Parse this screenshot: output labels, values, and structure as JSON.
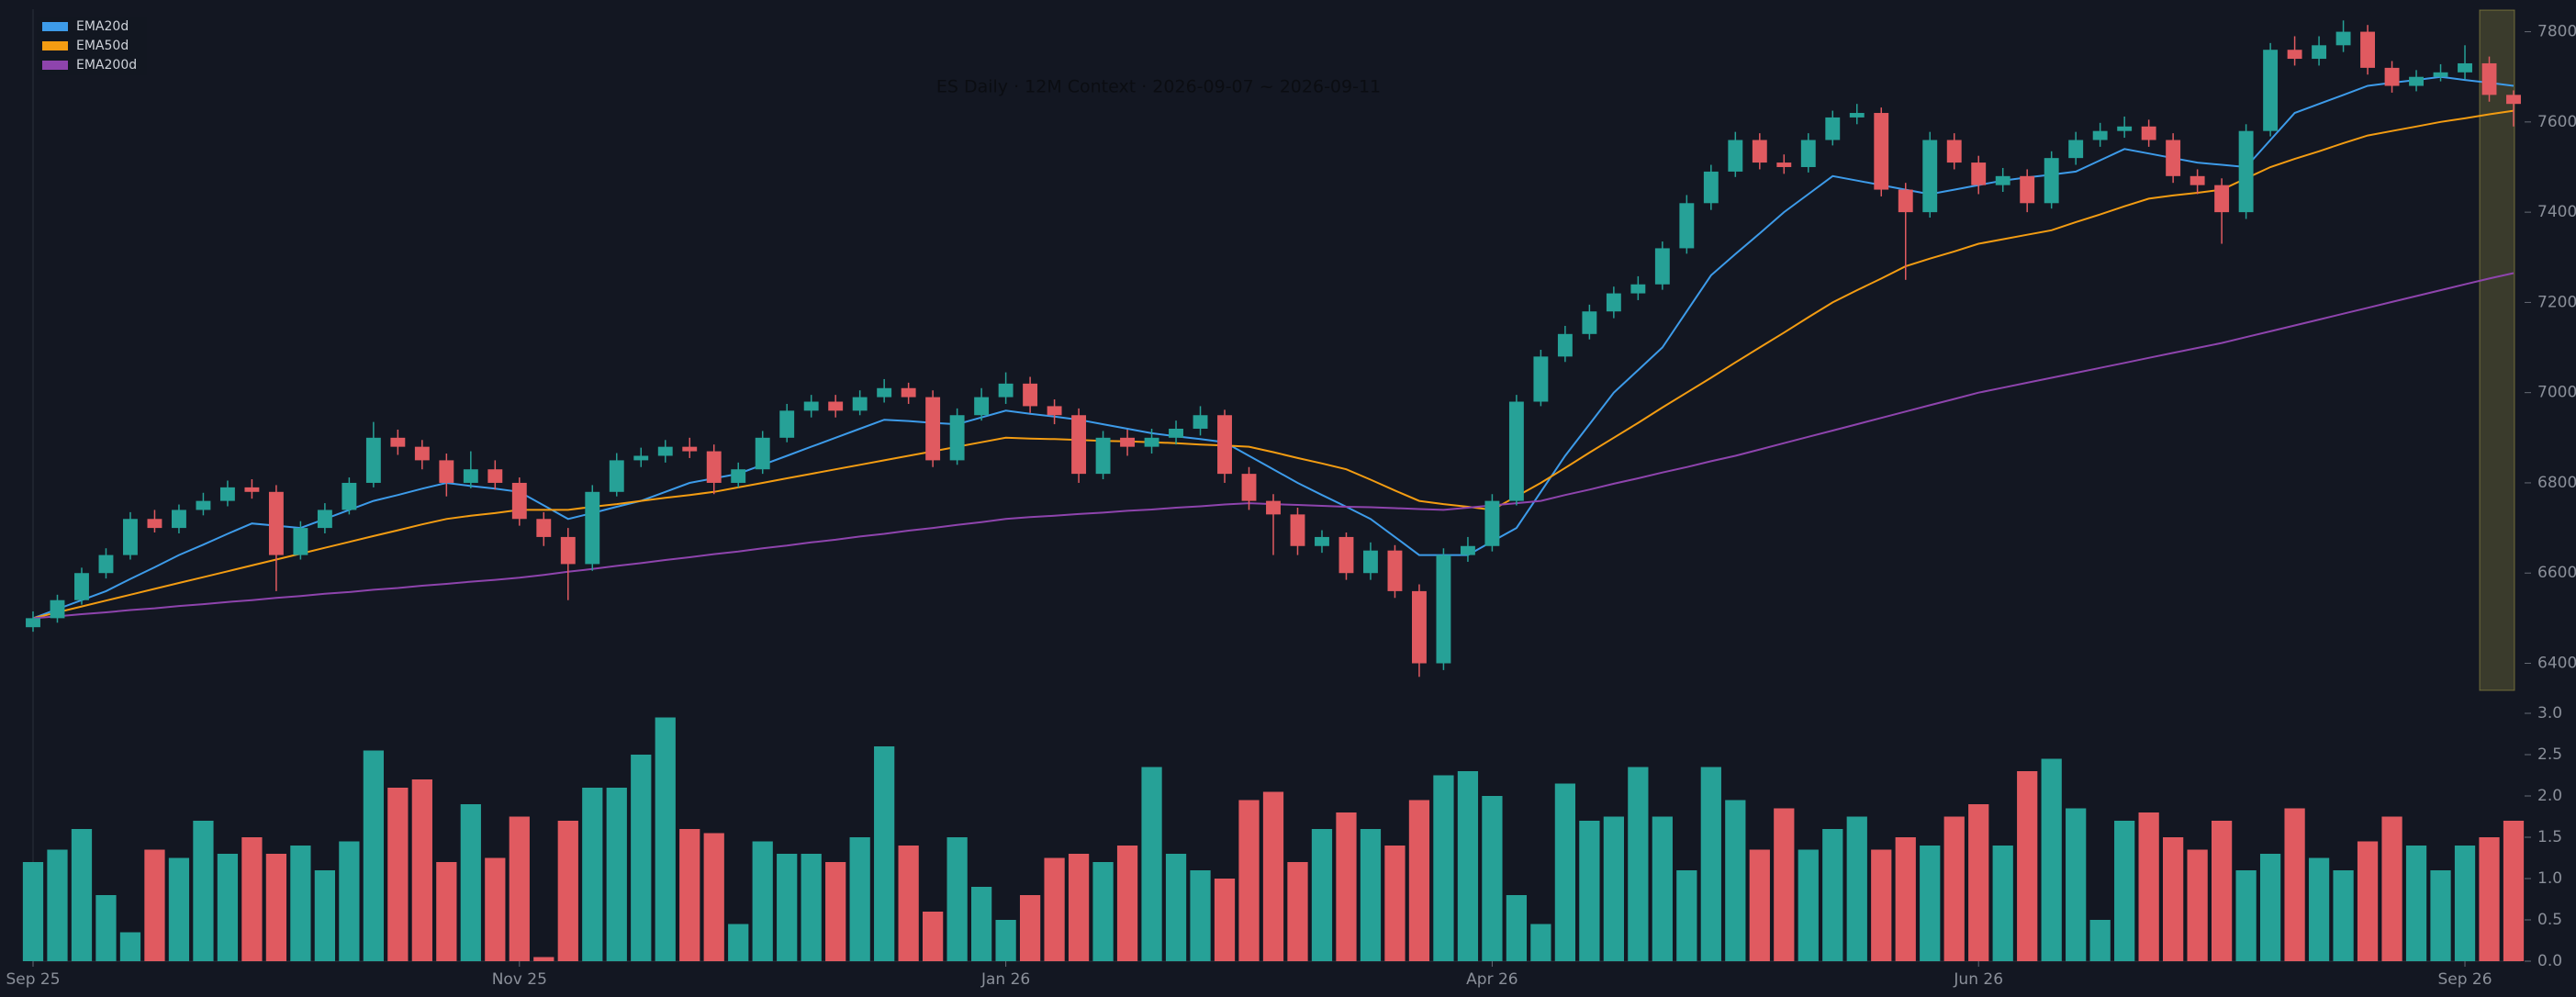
{
  "chart_data": {
    "type": "candlestick",
    "title": "ES Daily · 12M Context · 2026-09-07 ~ 2026-09-11",
    "xlim": [
      0,
      102
    ],
    "xticks": [
      {
        "value": 0,
        "label": "Sep 25"
      },
      {
        "value": 20,
        "label": "Nov 25"
      },
      {
        "value": 40,
        "label": "Jan 26"
      },
      {
        "value": 60,
        "label": "Apr 26"
      },
      {
        "value": 80,
        "label": "Jun 26"
      },
      {
        "value": 100,
        "label": "Sep 26"
      }
    ],
    "ylim": [
      6340,
      7850
    ],
    "yticks": [
      6400,
      6600,
      6800,
      7000,
      7200,
      7400,
      7600,
      7800
    ],
    "y2lim": [
      0,
      3
    ],
    "y2ticks": [
      {
        "value": 0,
        "label": "0.0"
      },
      0.5,
      {
        "value": 1,
        "label": "1.0"
      },
      1.5,
      {
        "value": 2,
        "label": "2.0"
      },
      2.5,
      {
        "value": 3,
        "label": "3.0"
      }
    ],
    "up_color": "#26a197",
    "down_color": "#e05a60",
    "open": [
      6480,
      6500,
      6540,
      6600,
      6640,
      6720,
      6700,
      6740,
      6760,
      6790,
      6780,
      6640,
      6700,
      6740,
      6800,
      6900,
      6880,
      6850,
      6800,
      6830,
      6800,
      6720,
      6680,
      6620,
      6780,
      6850,
      6860,
      6880,
      6870,
      6800,
      6830,
      6900,
      6960,
      6980,
      6960,
      6990,
      7010,
      6990,
      6850,
      6950,
      6990,
      7020,
      6970,
      6950,
      6820,
      6900,
      6880,
      6900,
      6920,
      6950,
      6820,
      6760,
      6730,
      6660,
      6680,
      6600,
      6650,
      6560,
      6400,
      6640,
      6660,
      6760,
      6980,
      7080,
      7130,
      7180,
      7220,
      7240,
      7320,
      7420,
      7490,
      7560,
      7510,
      7500,
      7560,
      7610,
      7620,
      7450,
      7400,
      7560,
      7510,
      7460,
      7480,
      7420,
      7520,
      7560,
      7580,
      7590,
      7560,
      7480,
      7460,
      7400,
      7580,
      7760,
      7740,
      7770,
      7800,
      7720,
      7680,
      7700,
      7710,
      7730,
      7660
    ],
    "high": [
      6515,
      6552,
      6612,
      6655,
      6735,
      6740,
      6752,
      6778,
      6805,
      6808,
      6795,
      6715,
      6755,
      6812,
      6935,
      6918,
      6895,
      6865,
      6870,
      6850,
      6812,
      6735,
      6700,
      6795,
      6866,
      6878,
      6895,
      6900,
      6885,
      6845,
      6915,
      6975,
      6995,
      6995,
      7005,
      7030,
      7022,
      7005,
      6965,
      7010,
      7045,
      7035,
      6985,
      6965,
      6915,
      6918,
      6920,
      6938,
      6970,
      6962,
      6835,
      6775,
      6745,
      6695,
      6690,
      6668,
      6662,
      6575,
      6655,
      6680,
      6775,
      6995,
      7095,
      7148,
      7195,
      7235,
      7258,
      7335,
      7438,
      7505,
      7578,
      7575,
      7528,
      7575,
      7625,
      7640,
      7632,
      7465,
      7578,
      7575,
      7525,
      7498,
      7495,
      7535,
      7578,
      7598,
      7612,
      7605,
      7575,
      7495,
      7475,
      7595,
      7775,
      7790,
      7790,
      7825,
      7815,
      7735,
      7715,
      7728,
      7770,
      7745,
      7670
    ],
    "low": [
      6470,
      6490,
      6530,
      6588,
      6630,
      6690,
      6688,
      6728,
      6748,
      6765,
      6560,
      6630,
      6688,
      6730,
      6790,
      6862,
      6830,
      6770,
      6788,
      6785,
      6705,
      6660,
      6540,
      6605,
      6770,
      6835,
      6845,
      6855,
      6775,
      6790,
      6820,
      6890,
      6945,
      6945,
      6950,
      6978,
      6975,
      6835,
      6840,
      6938,
      6975,
      6955,
      6930,
      6800,
      6808,
      6860,
      6865,
      6885,
      6905,
      6800,
      6740,
      6640,
      6640,
      6645,
      6585,
      6585,
      6545,
      6370,
      6385,
      6625,
      6648,
      6750,
      6970,
      7068,
      7118,
      7165,
      7205,
      7228,
      7308,
      7405,
      7478,
      7495,
      7485,
      7488,
      7548,
      7595,
      7435,
      7250,
      7388,
      7495,
      7440,
      7445,
      7400,
      7408,
      7505,
      7545,
      7565,
      7545,
      7465,
      7440,
      7330,
      7385,
      7568,
      7725,
      7725,
      7755,
      7705,
      7665,
      7668,
      7690,
      7695,
      7645,
      7590
    ],
    "close": [
      6500,
      6540,
      6600,
      6640,
      6720,
      6700,
      6740,
      6760,
      6790,
      6780,
      6640,
      6700,
      6740,
      6800,
      6900,
      6880,
      6850,
      6800,
      6830,
      6800,
      6720,
      6680,
      6620,
      6780,
      6850,
      6860,
      6880,
      6870,
      6800,
      6830,
      6900,
      6960,
      6980,
      6960,
      6990,
      7010,
      6990,
      6850,
      6950,
      6990,
      7020,
      6970,
      6950,
      6820,
      6900,
      6880,
      6900,
      6920,
      6950,
      6820,
      6760,
      6730,
      6660,
      6680,
      6600,
      6650,
      6560,
      6400,
      6640,
      6660,
      6760,
      6980,
      7080,
      7130,
      7180,
      7220,
      7240,
      7320,
      7420,
      7490,
      7560,
      7510,
      7500,
      7560,
      7610,
      7620,
      7450,
      7400,
      7560,
      7510,
      7460,
      7480,
      7420,
      7520,
      7560,
      7580,
      7590,
      7560,
      7480,
      7460,
      7400,
      7580,
      7760,
      7740,
      7770,
      7800,
      7720,
      7680,
      7700,
      7710,
      7730,
      7660,
      7640
    ],
    "volume": [
      1.2,
      1.35,
      1.6,
      0.8,
      0.35,
      1.35,
      1.25,
      1.7,
      1.3,
      1.5,
      1.3,
      1.4,
      1.1,
      1.45,
      2.55,
      2.1,
      2.2,
      1.2,
      1.9,
      1.25,
      1.75,
      0.05,
      1.7,
      2.1,
      2.1,
      2.5,
      2.95,
      1.6,
      1.55,
      0.45,
      1.45,
      1.3,
      1.3,
      1.2,
      1.5,
      2.6,
      1.4,
      0.6,
      1.5,
      0.9,
      0.5,
      0.8,
      1.25,
      1.3,
      1.2,
      1.4,
      2.35,
      1.3,
      1.1,
      1.0,
      1.95,
      2.05,
      1.2,
      1.6,
      1.8,
      1.6,
      1.4,
      1.95,
      2.25,
      2.3,
      2.0,
      0.8,
      0.45,
      2.15,
      1.7,
      1.75,
      2.35,
      1.75,
      1.1,
      2.35,
      1.95,
      1.35,
      1.85,
      1.35,
      1.6,
      1.75,
      1.35,
      1.5,
      1.4,
      1.75,
      1.9,
      1.4,
      2.3,
      2.45,
      1.85,
      0.5,
      1.7,
      1.8,
      1.5,
      1.35,
      1.7,
      1.1,
      1.3,
      1.85,
      1.25,
      1.1,
      1.45,
      1.75,
      1.4,
      1.1,
      1.4,
      1.5,
      1.7
    ],
    "series": [
      {
        "name": "EMA20d",
        "color": "#3d9be9",
        "values": [
          6500,
          6520,
          6540,
          6560,
          6587,
          6613,
          6640,
          6663,
          6687,
          6710,
          6705,
          6700,
          6720,
          6740,
          6760,
          6773,
          6787,
          6800,
          6793,
          6787,
          6780,
          6750,
          6720,
          6733,
          6747,
          6760,
          6780,
          6800,
          6810,
          6820,
          6840,
          6860,
          6880,
          6900,
          6920,
          6940,
          6937,
          6933,
          6930,
          6945,
          6960,
          6953,
          6947,
          6940,
          6930,
          6920,
          6910,
          6903,
          6897,
          6890,
          6860,
          6830,
          6800,
          6773,
          6747,
          6720,
          6680,
          6640,
          6640,
          6640,
          6670,
          6700,
          6780,
          6860,
          6930,
          7000,
          7050,
          7100,
          7180,
          7260,
          7307,
          7353,
          7400,
          7440,
          7480,
          7470,
          7460,
          7450,
          7440,
          7450,
          7460,
          7470,
          7477,
          7483,
          7490,
          7515,
          7540,
          7530,
          7520,
          7510,
          7505,
          7500,
          7560,
          7620,
          7640,
          7660,
          7680,
          7687,
          7693,
          7700,
          7693,
          7687,
          7680
        ]
      },
      {
        "name": "EMA50d",
        "color": "#f39c12",
        "values": [
          6500,
          6513,
          6526,
          6539,
          6552,
          6565,
          6578,
          6591,
          6604,
          6617,
          6630,
          6643,
          6656,
          6669,
          6682,
          6695,
          6708,
          6720,
          6727,
          6733,
          6740,
          6740,
          6740,
          6747,
          6753,
          6760,
          6767,
          6773,
          6780,
          6790,
          6800,
          6810,
          6820,
          6830,
          6840,
          6850,
          6860,
          6870,
          6880,
          6890,
          6900,
          6898,
          6897,
          6895,
          6893,
          6892,
          6890,
          6888,
          6885,
          6883,
          6880,
          6868,
          6855,
          6843,
          6830,
          6807,
          6783,
          6760,
          6753,
          6747,
          6740,
          6770,
          6800,
          6833,
          6867,
          6900,
          6933,
          6967,
          7000,
          7033,
          7067,
          7100,
          7133,
          7167,
          7200,
          7227,
          7253,
          7280,
          7297,
          7313,
          7330,
          7340,
          7350,
          7360,
          7378,
          7395,
          7413,
          7430,
          7437,
          7443,
          7450,
          7475,
          7500,
          7518,
          7535,
          7553,
          7570,
          7580,
          7590,
          7600,
          7608,
          7617,
          7625
        ]
      },
      {
        "name": "EMA200d",
        "color": "#8e44ad",
        "values": [
          6500,
          6504,
          6509,
          6513,
          6518,
          6522,
          6527,
          6531,
          6536,
          6540,
          6545,
          6549,
          6554,
          6558,
          6563,
          6567,
          6572,
          6576,
          6581,
          6585,
          6590,
          6596,
          6603,
          6609,
          6616,
          6622,
          6629,
          6635,
          6642,
          6648,
          6655,
          6661,
          6668,
          6674,
          6681,
          6687,
          6694,
          6700,
          6707,
          6713,
          6720,
          6724,
          6727,
          6731,
          6734,
          6738,
          6741,
          6745,
          6748,
          6752,
          6755,
          6753,
          6751,
          6749,
          6747,
          6746,
          6744,
          6742,
          6740,
          6745,
          6750,
          6755,
          6760,
          6773,
          6785,
          6798,
          6810,
          6823,
          6835,
          6848,
          6860,
          6874,
          6888,
          6902,
          6916,
          6930,
          6944,
          6958,
          6972,
          6986,
          7000,
          7011,
          7022,
          7033,
          7044,
          7055,
          7066,
          7077,
          7088,
          7099,
          7110,
          7123,
          7136,
          7149,
          7162,
          7175,
          7188,
          7201,
          7214,
          7227,
          7240,
          7253,
          7265
        ]
      }
    ]
  }
}
